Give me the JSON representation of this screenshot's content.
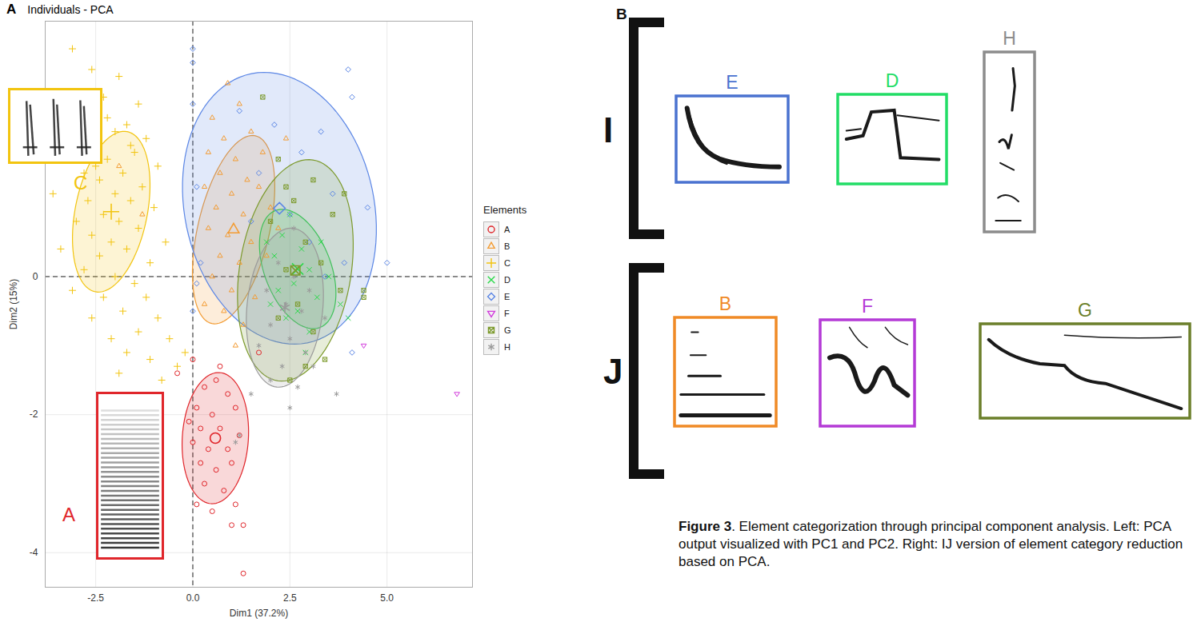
{
  "chart_data": {
    "type": "scatter",
    "panel": "A",
    "title": "Individuals - PCA",
    "x_label": "Dim1 (37.2%)",
    "y_label": "Dim2 (15%)",
    "xlim": [
      -3.8,
      7.2
    ],
    "ylim": [
      -4.5,
      3.7
    ],
    "xticks": [
      -2.5,
      {
        "value": 0,
        "label": "0.0"
      },
      2.5,
      {
        "value": 5,
        "label": "5.0"
      }
    ],
    "yticks": [
      -4,
      -2,
      0
    ],
    "grid": true,
    "reference_lines": {
      "x": 0,
      "y": 0
    },
    "legend": "right",
    "legend_title": "Elements",
    "insets": [
      "C",
      "A"
    ],
    "series": [
      {
        "name": "A",
        "color": "#e0262b",
        "marker": "circle",
        "ellipse": {
          "center": [
            0.58,
            -2.34
          ],
          "axis1": [
            0.1,
            0.95
          ],
          "axis2": [
            0.85,
            -0.02
          ]
        },
        "points": [
          [
            0.6,
            -1.5
          ],
          [
            0.3,
            -1.6
          ],
          [
            0.9,
            -1.7
          ],
          [
            0.1,
            -1.9
          ],
          [
            0.5,
            -2.0
          ],
          [
            1.1,
            -1.9
          ],
          [
            0.2,
            -2.2
          ],
          [
            0.7,
            -2.2
          ],
          [
            1.2,
            -2.3
          ],
          [
            0.0,
            -2.4
          ],
          [
            0.4,
            -2.5
          ],
          [
            0.9,
            -2.5
          ],
          [
            0.2,
            -2.7
          ],
          [
            0.6,
            -2.8
          ],
          [
            1.0,
            -2.7
          ],
          [
            0.3,
            -3.0
          ],
          [
            0.8,
            -3.1
          ],
          [
            0.1,
            -3.3
          ],
          [
            0.5,
            -3.4
          ],
          [
            1.1,
            -3.3
          ],
          [
            1.0,
            -3.6
          ],
          [
            1.3,
            -3.6
          ],
          [
            1.3,
            -4.3
          ],
          [
            -0.1,
            -2.1
          ],
          [
            1.7,
            -1.1
          ],
          [
            0.0,
            -1.2
          ],
          [
            -0.4,
            -1.4
          ],
          [
            0.7,
            -1.3
          ]
        ]
      },
      {
        "name": "B",
        "color": "#f39c34",
        "marker": "triangle",
        "ellipse": {
          "center": [
            1.05,
            0.68
          ],
          "axis1": [
            0.56,
            1.36
          ],
          "axis2": [
            0.9,
            -0.11
          ]
        },
        "points": [
          [
            0.5,
            2.3
          ],
          [
            1.2,
            2.5
          ],
          [
            0.8,
            2.0
          ],
          [
            1.5,
            2.1
          ],
          [
            0.4,
            1.8
          ],
          [
            1.1,
            1.7
          ],
          [
            1.8,
            1.8
          ],
          [
            0.7,
            1.5
          ],
          [
            1.4,
            1.4
          ],
          [
            0.3,
            1.3
          ],
          [
            1.0,
            1.2
          ],
          [
            1.7,
            1.3
          ],
          [
            0.6,
            1.0
          ],
          [
            1.3,
            0.9
          ],
          [
            2.0,
            1.0
          ],
          [
            0.4,
            0.7
          ],
          [
            0.9,
            0.6
          ],
          [
            1.5,
            0.5
          ],
          [
            0.7,
            0.3
          ],
          [
            1.2,
            0.2
          ],
          [
            1.9,
            0.3
          ],
          [
            0.5,
            0.0
          ],
          [
            1.0,
            -0.2
          ],
          [
            1.6,
            -0.3
          ],
          [
            0.8,
            -0.5
          ],
          [
            1.3,
            -0.7
          ],
          [
            0.3,
            -0.4
          ],
          [
            2.2,
            0.7
          ],
          [
            1.1,
            -1.0
          ],
          [
            -1.9,
            1.6
          ],
          [
            -1.3,
            0.9
          ],
          [
            2.4,
            2.0
          ],
          [
            0.9,
            2.8
          ]
        ]
      },
      {
        "name": "C",
        "color": "#f2c40f",
        "marker": "plus",
        "ellipse": {
          "center": [
            -2.1,
            0.94
          ],
          "axis1": [
            0.41,
            1.16
          ],
          "axis2": [
            0.91,
            -0.1
          ]
        },
        "points": [
          [
            -3.1,
            3.3
          ],
          [
            -2.6,
            3.0
          ],
          [
            -1.9,
            2.9
          ],
          [
            -2.3,
            2.6
          ],
          [
            -1.4,
            2.5
          ],
          [
            -2.9,
            2.4
          ],
          [
            -1.7,
            2.2
          ],
          [
            -2.0,
            2.1
          ],
          [
            -1.2,
            2.0
          ],
          [
            -2.6,
            1.9
          ],
          [
            -3.3,
            1.8
          ],
          [
            -1.5,
            1.8
          ],
          [
            -2.2,
            1.7
          ],
          [
            -0.9,
            1.6
          ],
          [
            -2.8,
            1.5
          ],
          [
            -1.8,
            1.5
          ],
          [
            -2.4,
            1.4
          ],
          [
            -1.3,
            1.3
          ],
          [
            -2.0,
            1.2
          ],
          [
            -3.6,
            1.2
          ],
          [
            -2.7,
            1.1
          ],
          [
            -1.6,
            1.1
          ],
          [
            -1.0,
            1.0
          ],
          [
            -2.3,
            0.9
          ],
          [
            -3.0,
            0.8
          ],
          [
            -1.9,
            0.8
          ],
          [
            -1.4,
            0.7
          ],
          [
            -2.6,
            0.6
          ],
          [
            -2.1,
            0.5
          ],
          [
            -0.7,
            0.5
          ],
          [
            -3.4,
            0.4
          ],
          [
            -1.7,
            0.4
          ],
          [
            -2.4,
            0.3
          ],
          [
            -1.1,
            0.2
          ],
          [
            -2.8,
            0.1
          ],
          [
            -2.0,
            0.0
          ],
          [
            -1.5,
            -0.1
          ],
          [
            -3.1,
            -0.2
          ],
          [
            -2.3,
            -0.3
          ],
          [
            -1.2,
            -0.3
          ],
          [
            -1.8,
            -0.5
          ],
          [
            -2.6,
            -0.6
          ],
          [
            -0.9,
            -0.6
          ],
          [
            -1.4,
            -0.8
          ],
          [
            -2.1,
            -0.9
          ],
          [
            -0.6,
            -0.9
          ],
          [
            -1.7,
            -1.1
          ],
          [
            -1.1,
            -1.2
          ],
          [
            -0.4,
            -1.3
          ],
          [
            -1.9,
            -1.4
          ],
          [
            -0.8,
            -1.5
          ],
          [
            -0.2,
            -1.1
          ],
          [
            -2.5,
            1.6
          ],
          [
            -1.6,
            1.9
          ],
          [
            -2.2,
            2.3
          ]
        ]
      },
      {
        "name": "D",
        "color": "#2bd94a",
        "marker": "times",
        "ellipse": {
          "center": [
            2.7,
            0.11
          ],
          "axis1": [
            -0.56,
            0.85
          ],
          "axis2": [
            0.81,
            0.16
          ]
        },
        "points": [
          [
            2.3,
            0.6
          ],
          [
            2.8,
            0.4
          ],
          [
            2.1,
            0.3
          ],
          [
            3.0,
            0.1
          ],
          [
            2.6,
            -0.1
          ],
          [
            2.2,
            -0.2
          ],
          [
            3.2,
            -0.3
          ],
          [
            2.7,
            -0.5
          ],
          [
            2.4,
            -0.6
          ],
          [
            3.0,
            -0.8
          ],
          [
            1.9,
            0.5
          ],
          [
            2.5,
            0.9
          ],
          [
            3.5,
            0.0
          ],
          [
            4.0,
            -0.6
          ],
          [
            3.8,
            -0.4
          ],
          [
            2.0,
            -0.4
          ],
          [
            3.3,
            0.5
          ],
          [
            2.9,
            -1.1
          ]
        ]
      },
      {
        "name": "E",
        "color": "#5b86e5",
        "marker": "diamond",
        "ellipse": {
          "center": [
            2.23,
            0.99
          ],
          "axis1": [
            -0.72,
            1.95
          ],
          "axis2": [
            2.39,
            0.27
          ]
        },
        "points": [
          [
            0.0,
            3.3
          ],
          [
            0.0,
            3.1
          ],
          [
            0.0,
            2.5
          ],
          [
            4.0,
            3.0
          ],
          [
            4.1,
            2.6
          ],
          [
            3.3,
            2.1
          ],
          [
            2.8,
            1.8
          ],
          [
            4.5,
            1.0
          ],
          [
            3.6,
            1.2
          ],
          [
            1.7,
            1.5
          ],
          [
            2.5,
            0.9
          ],
          [
            3.0,
            0.5
          ],
          [
            1.2,
            2.4
          ],
          [
            3.9,
            0.2
          ],
          [
            5.0,
            0.2
          ],
          [
            0.1,
            1.3
          ],
          [
            0.2,
            0.2
          ],
          [
            0.1,
            -0.1
          ],
          [
            2.1,
            2.2
          ],
          [
            3.4,
            0.0
          ],
          [
            4.1,
            -1.1
          ],
          [
            0.0,
            -0.5
          ],
          [
            1.5,
            0.8
          ]
        ]
      },
      {
        "name": "F",
        "color": "#d23cdc",
        "marker": "triangle-down",
        "points": [
          [
            4.4,
            -1.0
          ],
          [
            6.8,
            -1.7
          ]
        ]
      },
      {
        "name": "G",
        "color": "#7c9a2c",
        "marker": "square-x",
        "ellipse": {
          "center": [
            2.64,
            0.09
          ],
          "axis1": [
            0.45,
            1.6
          ],
          "axis2": [
            1.42,
            -0.12
          ]
        },
        "points": [
          [
            2.2,
            1.7
          ],
          [
            3.1,
            1.4
          ],
          [
            2.6,
            1.1
          ],
          [
            3.6,
            0.9
          ],
          [
            2.0,
            0.8
          ],
          [
            2.9,
            0.5
          ],
          [
            3.3,
            0.2
          ],
          [
            2.4,
            0.1
          ],
          [
            3.8,
            -0.2
          ],
          [
            2.7,
            -0.4
          ],
          [
            3.1,
            -0.8
          ],
          [
            2.2,
            -0.6
          ],
          [
            4.4,
            -0.3
          ],
          [
            3.4,
            -1.2
          ],
          [
            2.5,
            -1.5
          ],
          [
            3.9,
            1.2
          ],
          [
            1.8,
            2.6
          ],
          [
            2.9,
            -1.3
          ],
          [
            4.4,
            -0.2
          ],
          [
            2.4,
            1.3
          ]
        ]
      },
      {
        "name": "H",
        "color": "#9a9a9a",
        "marker": "asterisk",
        "ellipse": {
          "center": [
            2.37,
            -0.45
          ],
          "axis1": [
            0.21,
            1.15
          ],
          "axis2": [
            0.97,
            -0.06
          ]
        },
        "points": [
          [
            2.2,
            0.2
          ],
          [
            2.6,
            0.0
          ],
          [
            1.9,
            -0.2
          ],
          [
            2.4,
            -0.4
          ],
          [
            2.8,
            -0.5
          ],
          [
            2.0,
            -0.7
          ],
          [
            2.5,
            -0.9
          ],
          [
            2.9,
            -1.1
          ],
          [
            1.7,
            -1.0
          ],
          [
            2.3,
            -1.3
          ],
          [
            2.7,
            -1.6
          ],
          [
            2.0,
            -1.5
          ],
          [
            1.5,
            -1.7
          ],
          [
            3.1,
            -1.3
          ],
          [
            3.7,
            -1.7
          ],
          [
            2.5,
            -1.9
          ],
          [
            3.4,
            -0.6
          ],
          [
            1.2,
            -2.3
          ],
          [
            1.1,
            -2.4
          ],
          [
            2.6,
            0.7
          ],
          [
            3.0,
            -0.2
          ]
        ]
      }
    ]
  },
  "panel_b": {
    "panel": "B",
    "groups": [
      {
        "label": "I",
        "elements": [
          {
            "name": "E",
            "color": "#4a72d0"
          },
          {
            "name": "D",
            "color": "#22dd66"
          },
          {
            "name": "H",
            "color": "#8c8c8c"
          }
        ]
      },
      {
        "label": "J",
        "elements": [
          {
            "name": "B",
            "color": "#f08a26"
          },
          {
            "name": "F",
            "color": "#b43ad6"
          },
          {
            "name": "G",
            "color": "#6b7f2a"
          }
        ]
      }
    ]
  },
  "caption": {
    "label": "Figure 3",
    "text": ". Element categorization through principal component analysis. Left: PCA output visualized with PC1 and PC2. Right: IJ version of element category reduction based on PCA."
  }
}
